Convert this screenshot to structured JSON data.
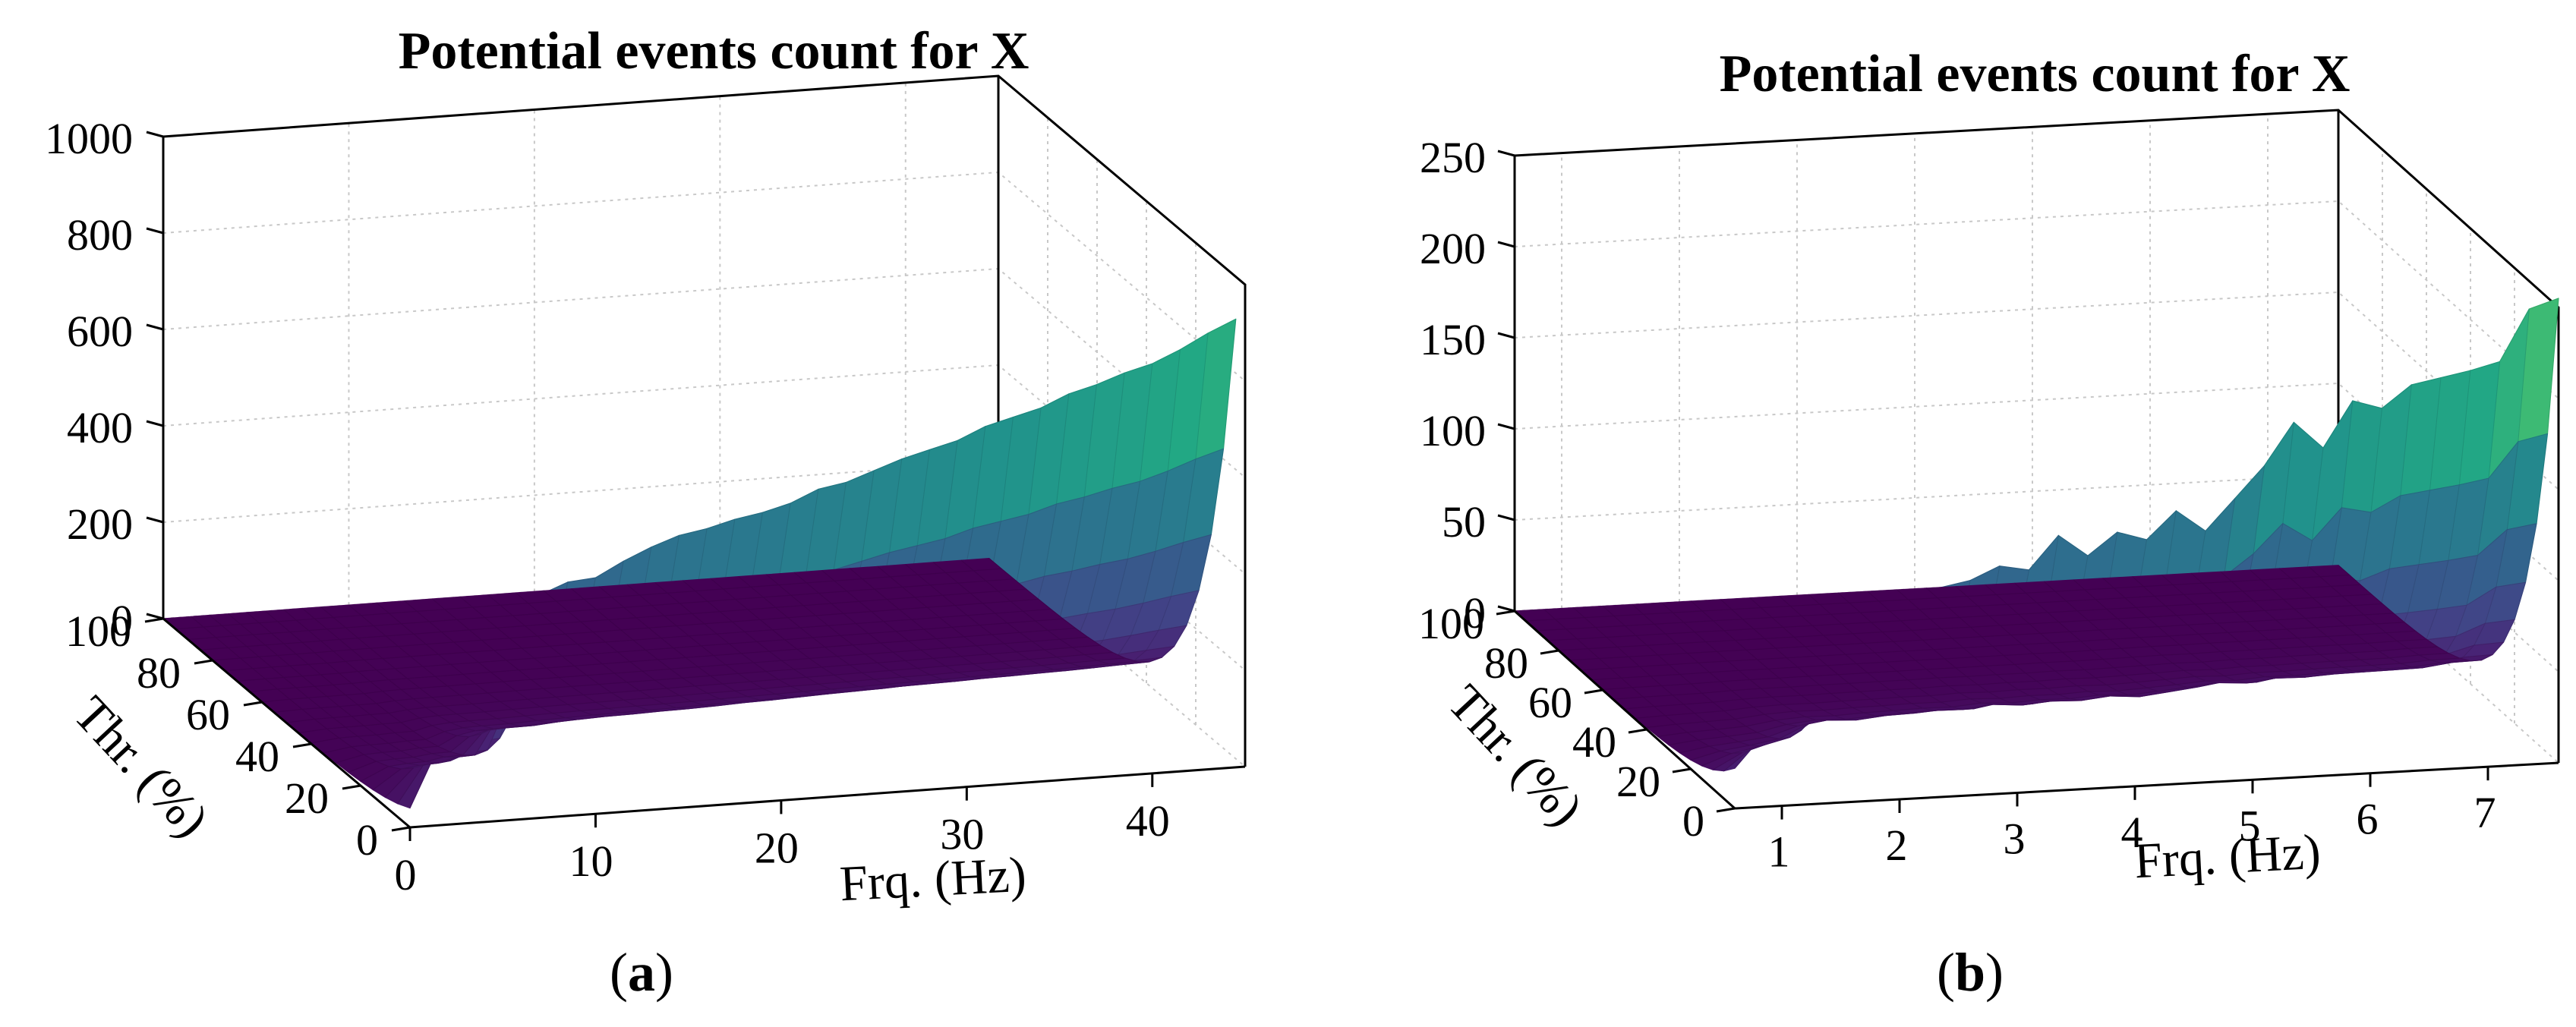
{
  "colors": {
    "background": "#ffffff",
    "axis": "#000000",
    "grid": "#c8c8c8",
    "colormap": "viridis"
  },
  "chart_data": [
    {
      "id": "a",
      "type": "surface3d",
      "title": "Potential events count for X",
      "caption_letter": "a",
      "xlabel": "Frq. (Hz)",
      "ylabel": "Thr. (%)",
      "zlabel": "",
      "xlim": [
        0,
        45
      ],
      "ylim": [
        0,
        100
      ],
      "zlim": [
        0,
        1000
      ],
      "xticks": [
        0,
        10,
        20,
        30,
        40
      ],
      "xtick_labels": [
        "0",
        "10",
        "20",
        "30",
        "40"
      ],
      "yticks": [
        0,
        20,
        40,
        60,
        80,
        100
      ],
      "ytick_labels": [
        "0",
        "20",
        "40",
        "60",
        "80",
        "100"
      ],
      "zticks": [
        0,
        200,
        400,
        600,
        800,
        1000
      ],
      "ztick_labels": [
        "0",
        "200",
        "400",
        "600",
        "800",
        "1000"
      ],
      "grid": true,
      "surface_x": [
        0,
        1.5,
        2.5,
        3.5,
        4.5,
        5.5,
        6.5,
        7.5,
        8.5,
        10,
        11.5,
        13,
        14.5,
        16,
        17.5,
        19,
        20.5,
        22,
        23.5,
        25,
        26.5,
        28,
        29.5,
        31,
        32.5,
        34,
        35.5,
        37,
        38.5,
        40,
        41.5,
        43,
        44.5
      ],
      "surface_y": [
        0,
        5,
        10,
        15,
        20,
        25,
        30,
        35,
        40,
        45,
        50,
        55,
        60,
        65,
        70,
        75,
        80,
        85,
        90,
        95,
        100
      ],
      "edge_values_at_thr0": [
        40,
        160,
        175,
        180,
        210,
        215,
        400,
        470,
        485,
        490,
        520,
        545,
        565,
        575,
        590,
        600,
        615,
        640,
        650,
        670,
        690,
        705,
        720,
        745,
        760,
        775,
        800,
        815,
        835,
        850,
        875,
        905,
        930
      ],
      "decay": 7.5
    },
    {
      "id": "b",
      "type": "surface3d",
      "title": "Potential events count for X",
      "caption_letter": "b",
      "xlabel": "Frq. (Hz)",
      "ylabel": "Thr. (%)",
      "zlabel": "",
      "xlim": [
        0.6,
        7.6
      ],
      "ylim": [
        0,
        100
      ],
      "zlim": [
        0,
        250
      ],
      "xticks": [
        1,
        2,
        3,
        4,
        5,
        6,
        7
      ],
      "xtick_labels": [
        "1",
        "2",
        "3",
        "4",
        "5",
        "6",
        "7"
      ],
      "yticks": [
        0,
        20,
        40,
        60,
        80,
        100
      ],
      "ytick_labels": [
        "0",
        "20",
        "40",
        "60",
        "80",
        "100"
      ],
      "zticks": [
        0,
        50,
        100,
        150,
        200,
        250
      ],
      "ztick_labels": [
        "0",
        "50",
        "100",
        "150",
        "200",
        "250"
      ],
      "grid": true,
      "surface_x": [
        0.6,
        0.85,
        1.1,
        1.35,
        1.6,
        1.85,
        2.1,
        2.35,
        2.6,
        2.85,
        3.1,
        3.35,
        3.6,
        3.85,
        4.1,
        4.35,
        4.6,
        4.85,
        5.1,
        5.35,
        5.6,
        5.85,
        6.1,
        6.35,
        6.6,
        6.85,
        7.1,
        7.35,
        7.6
      ],
      "surface_y": [
        0,
        5,
        10,
        15,
        20,
        25,
        30,
        35,
        40,
        45,
        50,
        55,
        60,
        65,
        70,
        75,
        80,
        85,
        90,
        95,
        100
      ],
      "edge_values_at_thr0": [
        22,
        40,
        50,
        62,
        95,
        110,
        105,
        115,
        118,
        125,
        122,
        140,
        128,
        140,
        135,
        150,
        138,
        155,
        172,
        195,
        180,
        205,
        200,
        212,
        215,
        218,
        222,
        250,
        255
      ],
      "decay": 7.5
    }
  ]
}
